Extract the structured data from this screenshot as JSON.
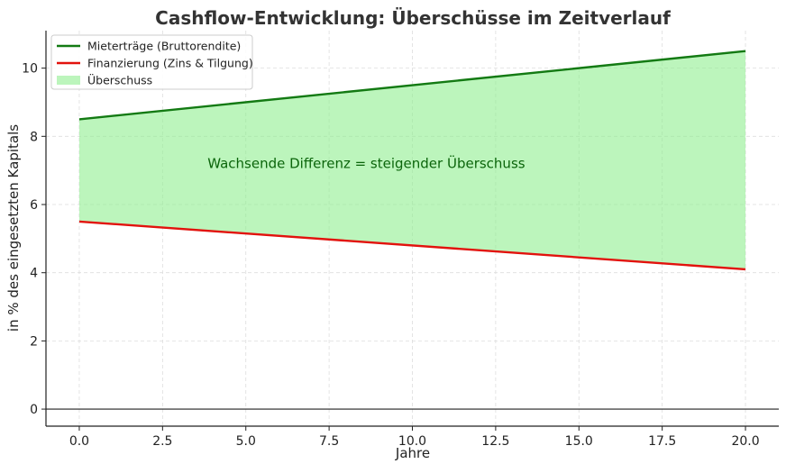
{
  "colors": {
    "rental": "#137a13",
    "financing": "#e2120d",
    "surplus_fill": "#90ee90",
    "grid": "#dddddd",
    "axis": "#222222",
    "annotation": "#0b650b"
  },
  "chart_data": {
    "type": "area",
    "title": "Cashflow-Entwicklung: Überschüsse im Zeitverlauf",
    "xlabel": "Jahre",
    "ylabel": "in % des eingesetzten Kapitals",
    "xlim": [
      -1,
      21
    ],
    "ylim": [
      -0.5,
      11.1
    ],
    "xticks": [
      0,
      2.5,
      5,
      7.5,
      10,
      12.5,
      15,
      17.5,
      20
    ],
    "xtick_labels": [
      "0.0",
      "2.5",
      "5.0",
      "7.5",
      "10.0",
      "12.5",
      "15.0",
      "17.5",
      "20.0"
    ],
    "yticks": [
      0,
      2,
      4,
      6,
      8,
      10
    ],
    "ytick_labels": [
      "0",
      "2",
      "4",
      "6",
      "8",
      "10"
    ],
    "grid": true,
    "legend_position": "top-left",
    "series": [
      {
        "name": "Mieterträge (Bruttorendite)",
        "kind": "line",
        "color_key": "rental",
        "x": [
          0,
          20
        ],
        "y": [
          8.5,
          10.5
        ]
      },
      {
        "name": "Finanzierung (Zins & Tilgung)",
        "kind": "line",
        "color_key": "financing",
        "x": [
          0,
          20
        ],
        "y": [
          5.5,
          4.1
        ]
      },
      {
        "name": "Überschuss",
        "kind": "fill_between",
        "color_key": "surplus_fill",
        "x": [
          0,
          20
        ],
        "y_upper": [
          8.5,
          10.5
        ],
        "y_lower": [
          5.5,
          4.1
        ]
      }
    ],
    "annotations": [
      {
        "text": "Wachsende Differenz = steigender Überschuss",
        "x": 12,
        "y": 7.2
      }
    ]
  }
}
